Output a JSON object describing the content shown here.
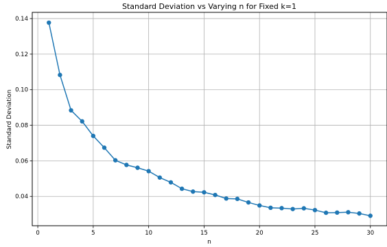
{
  "chart_data": {
    "type": "line",
    "title": "Standard Deviation vs Varying n for Fixed k=1",
    "xlabel": "n",
    "ylabel": "Standard Deviation",
    "xlim": [
      -0.5,
      31.5
    ],
    "ylim": [
      0.0235,
      0.1435
    ],
    "xticks": [
      0,
      5,
      10,
      15,
      20,
      25,
      30
    ],
    "yticks": [
      0.04,
      0.06,
      0.08,
      0.1,
      0.12,
      0.14
    ],
    "ytick_labels": [
      "0.04",
      "0.06",
      "0.08",
      "0.10",
      "0.12",
      "0.14"
    ],
    "grid": true,
    "line_color": "#1f77b4",
    "marker": "circle",
    "series": [
      {
        "x": [
          1,
          2,
          3,
          4,
          5,
          6,
          7,
          8,
          9,
          10,
          11,
          12,
          13,
          14,
          15,
          16,
          17,
          18,
          19,
          20,
          21,
          22,
          23,
          24,
          25,
          26,
          27,
          28,
          29,
          30
        ],
        "y": [
          0.1377,
          0.1083,
          0.0884,
          0.0822,
          0.074,
          0.0674,
          0.0603,
          0.0577,
          0.0561,
          0.0542,
          0.0506,
          0.0479,
          0.0443,
          0.0427,
          0.0423,
          0.0408,
          0.0388,
          0.0386,
          0.0366,
          0.0349,
          0.0336,
          0.0334,
          0.0329,
          0.0333,
          0.0323,
          0.0308,
          0.0309,
          0.0311,
          0.0304,
          0.0291
        ]
      }
    ]
  }
}
